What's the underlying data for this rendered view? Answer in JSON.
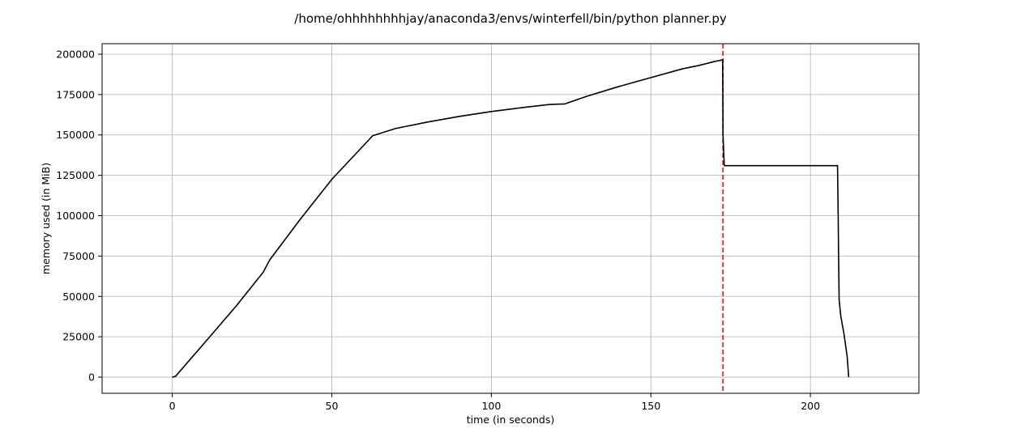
{
  "chart_data": {
    "type": "line",
    "title": "/home/ohhhhhhhhjay/anaconda3/envs/winterfell/bin/python planner.py",
    "xlabel": "time (in seconds)",
    "ylabel": "memory used (in MiB)",
    "xlim": [
      -22,
      234
    ],
    "ylim": [
      -10000,
      206500
    ],
    "xticks": [
      0,
      50,
      100,
      150,
      200
    ],
    "xtick_labels": [
      "0",
      "50",
      "100",
      "150",
      "200"
    ],
    "yticks": [
      0,
      25000,
      50000,
      75000,
      100000,
      125000,
      150000,
      175000,
      200000
    ],
    "ytick_labels": [
      "0",
      "25000",
      "50000",
      "75000",
      "100000",
      "125000",
      "150000",
      "175000",
      "200000"
    ],
    "grid": true,
    "series": [
      {
        "color": "#000000",
        "x": [
          0,
          1,
          10,
          20,
          28.5,
          30.5,
          40,
          50,
          62.8,
          70,
          80,
          90,
          100,
          110,
          118,
          120,
          123,
          130,
          140,
          150,
          160,
          165,
          170,
          172.5,
          172.6,
          173,
          180,
          190,
          200,
          208.5,
          208.7,
          208.8,
          209,
          209.5,
          210.5,
          211.5,
          212
        ],
        "y": [
          0,
          500,
          21000,
          44000,
          65000,
          72500,
          97500,
          122500,
          149500,
          154000,
          158000,
          161500,
          164500,
          167000,
          168800,
          169000,
          169200,
          174000,
          180000,
          185500,
          191000,
          193000,
          195500,
          196500,
          150000,
          131000,
          131000,
          131000,
          131000,
          131000,
          100000,
          80000,
          48000,
          38000,
          27000,
          13000,
          0
        ]
      }
    ],
    "vlines": [
      {
        "x": 172.6,
        "color": "#d62728",
        "style": "dashed"
      }
    ]
  }
}
